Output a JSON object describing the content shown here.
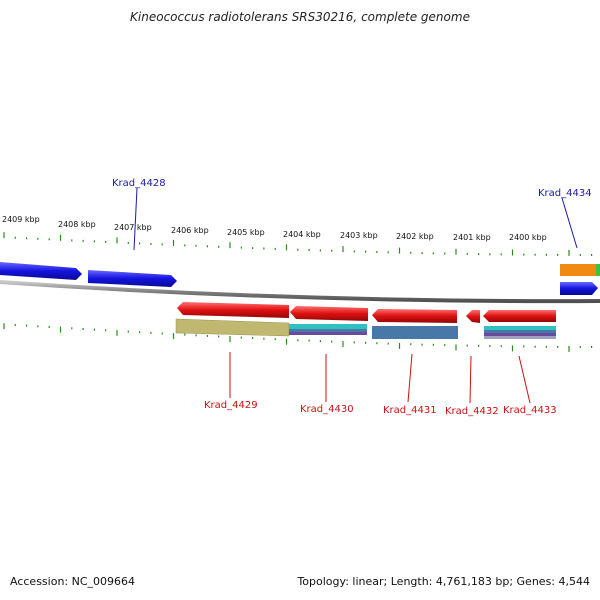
{
  "title": "Kineococcus radiotolerans SRS30216, complete genome",
  "footer": {
    "accession": "Accession: NC_009664",
    "summary": "Topology: linear; Length: 4,761,183 bp; Genes: 4,544"
  },
  "ruler_labels": [
    "2409 kbp",
    "2408 kbp",
    "2407 kbp",
    "2406 kbp",
    "2405 kbp",
    "2404 kbp",
    "2403 kbp",
    "2402 kbp",
    "2401 kbp",
    "2400 kbp"
  ],
  "genes_top": [
    {
      "name": "Krad_4428",
      "color": "#1a1aa8"
    },
    {
      "name": "Krad_4434",
      "color": "#1a1aa8"
    }
  ],
  "genes_bottom": [
    {
      "name": "Krad_4429",
      "color": "#cc1111"
    },
    {
      "name": "Krad_4430",
      "color": "#cc1111"
    },
    {
      "name": "Krad_4431",
      "color": "#cc1111"
    },
    {
      "name": "Krad_4432",
      "color": "#cc1111"
    },
    {
      "name": "Krad_4433",
      "color": "#cc1111"
    }
  ],
  "colors": {
    "forward_gene": "#1414e0",
    "reverse_gene": "#e01010",
    "backbone": "#808080",
    "ticks": "#2a8a1a",
    "feature_olive": "#c0b870",
    "feature_teal": "#30c0c0",
    "feature_steel": "#4878a8",
    "feature_orange": "#f08a10",
    "feature_green": "#40c040"
  }
}
